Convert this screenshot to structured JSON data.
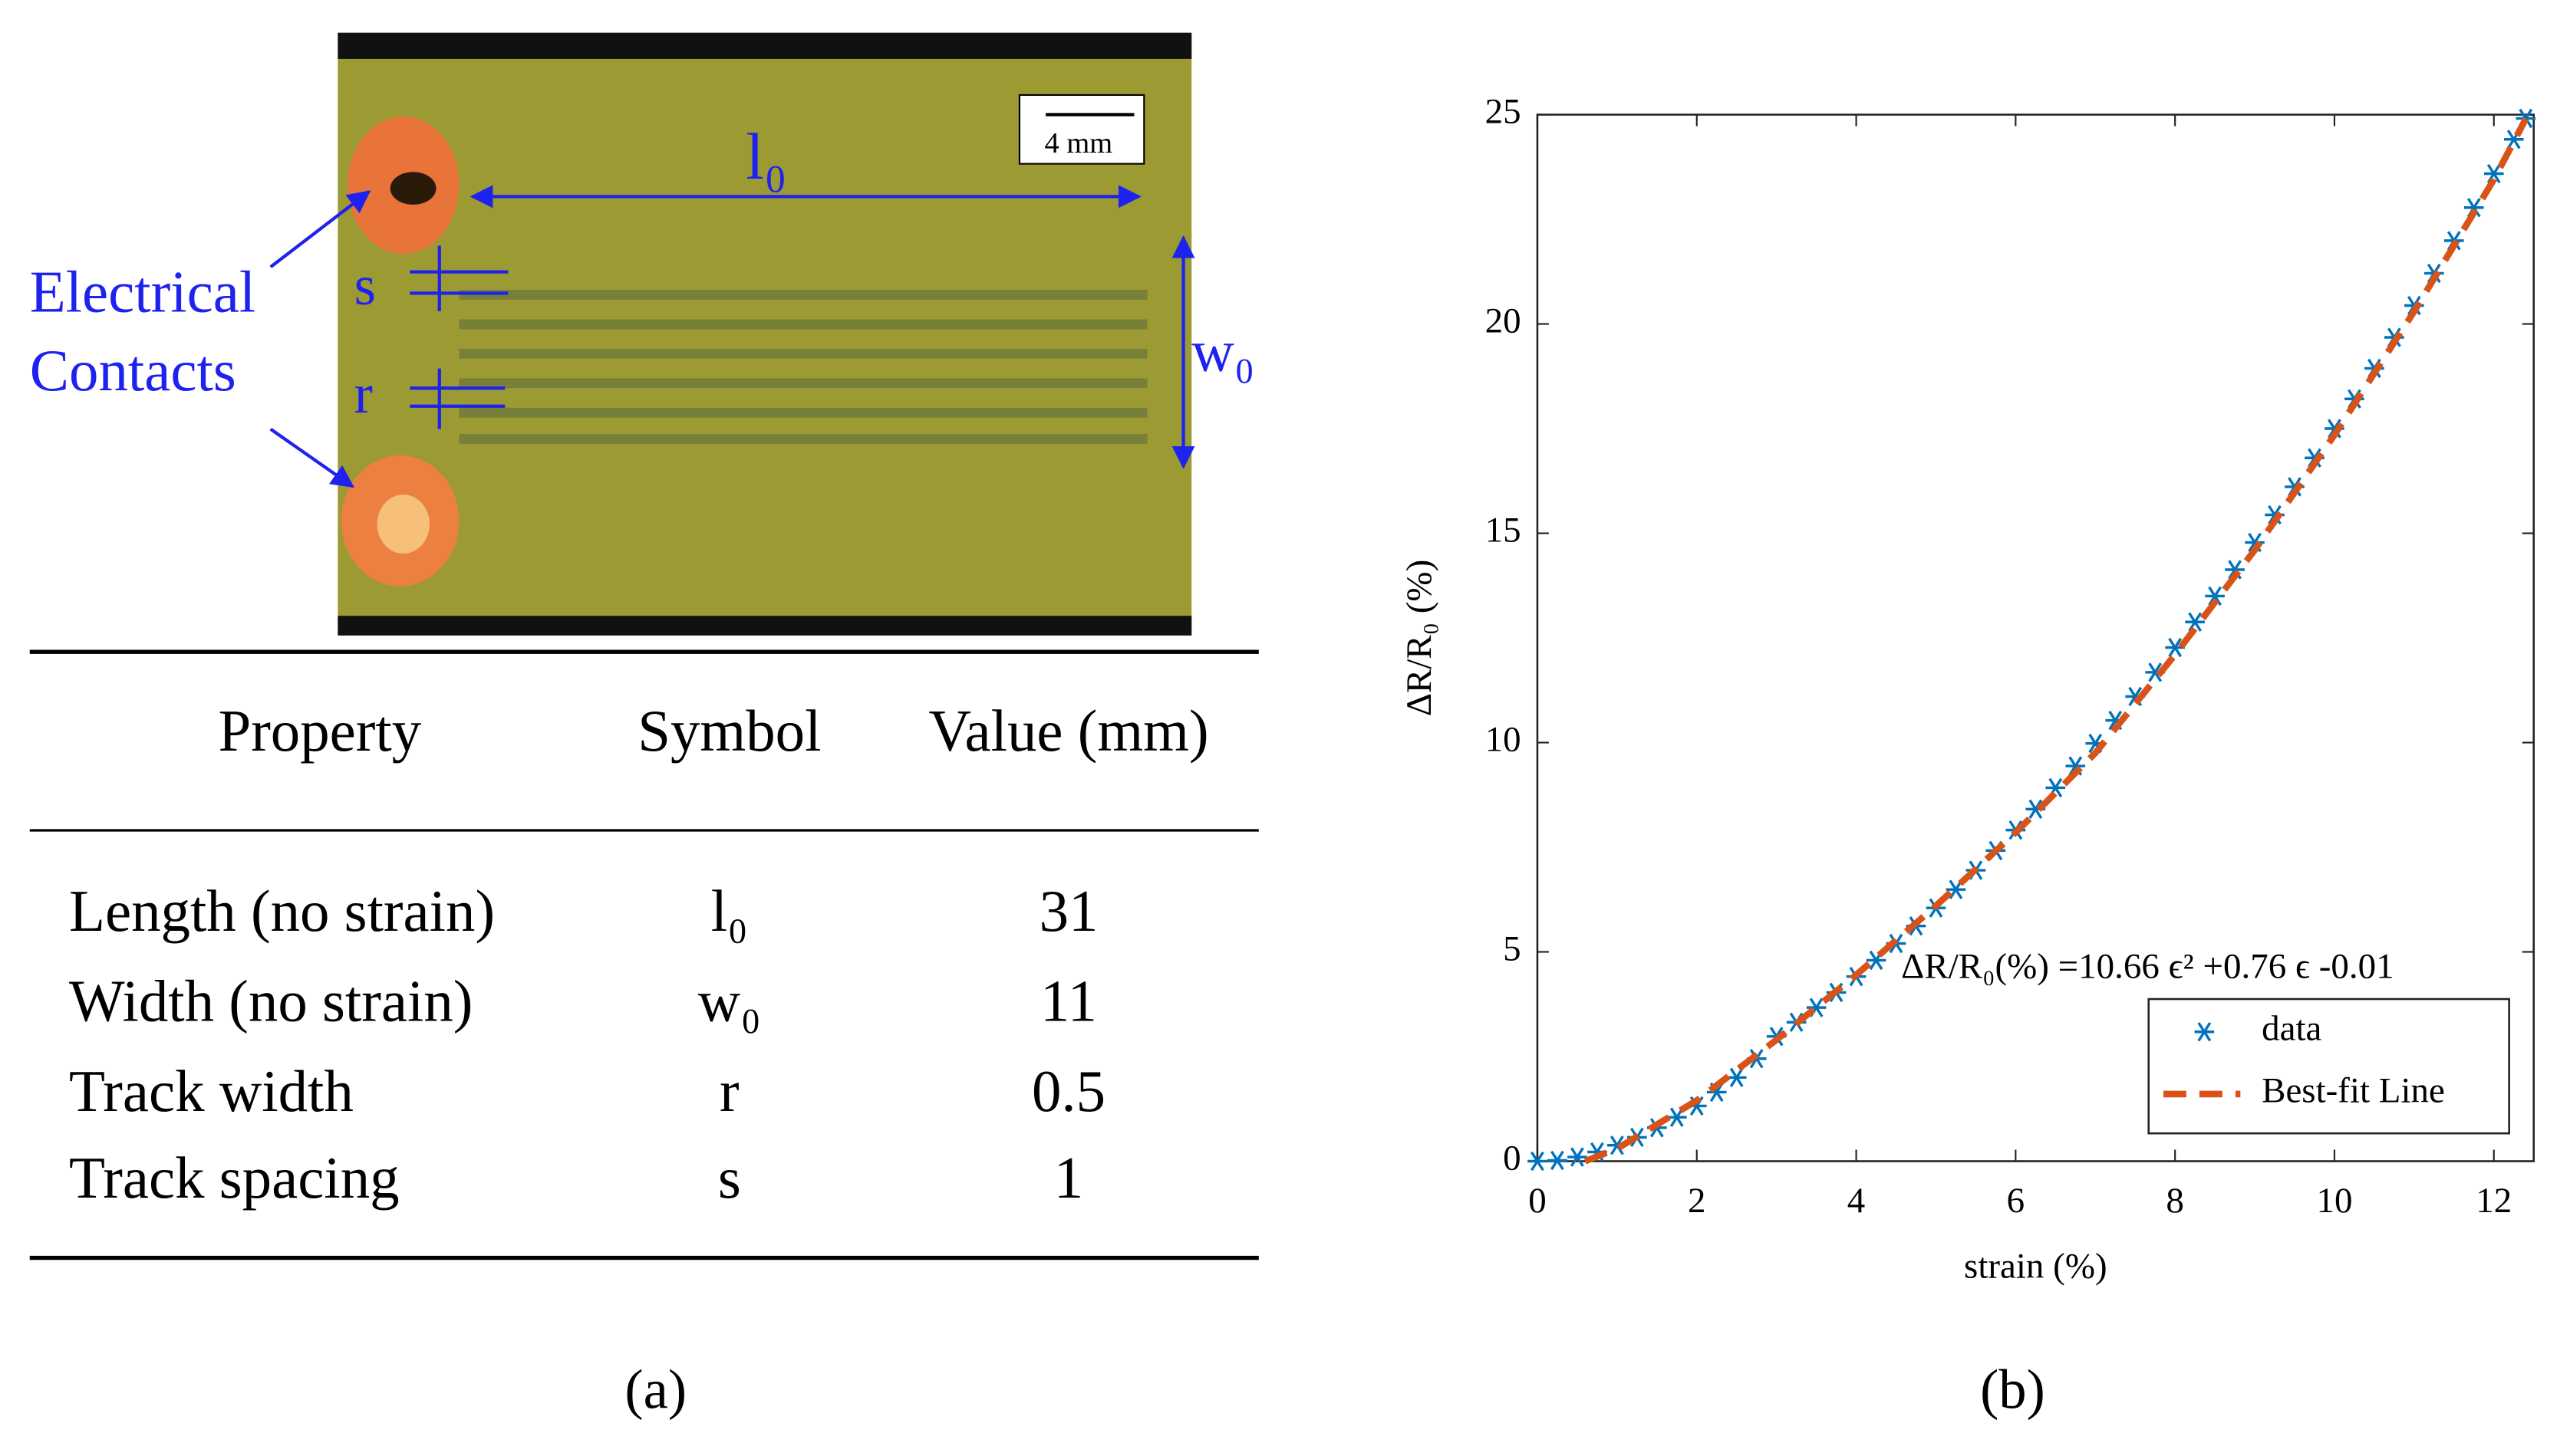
{
  "figure_a": {
    "photo_labels": {
      "contacts": [
        "Electrical",
        "Contacts"
      ],
      "s": "s",
      "r": "r",
      "l0": "l₀",
      "w0": "w₀",
      "scale": "4 mm"
    },
    "table": {
      "header": [
        "Property",
        "Symbol",
        "Value (mm)"
      ],
      "rows": [
        [
          "Length (no strain)",
          "l₀",
          31
        ],
        [
          "Width (no strain)",
          "w₀",
          11
        ],
        [
          "Track width",
          "r",
          0.5
        ],
        [
          "Track spacing",
          "s",
          1
        ]
      ]
    },
    "caption": "(a)"
  },
  "chart_data": {
    "type": "scatter",
    "caption": "(b)",
    "x_label": "strain (%)",
    "y_label": "ΔR/R₀ (%)",
    "annotation": "ΔR/R₀(%) =10.66 ϵ² +0.76 ϵ -0.01",
    "xlim": [
      0,
      12.5
    ],
    "xticks": [
      0,
      2,
      4,
      6,
      8,
      10,
      12
    ],
    "ylim": [
      0,
      25
    ],
    "yticks": [
      0,
      5,
      10,
      15,
      20,
      25
    ],
    "legend": "bottom-right",
    "series": [
      {
        "name": "data",
        "color": "#0072bd",
        "marker": "asterisk",
        "x": [
          0,
          0.25,
          0.5,
          0.75,
          1,
          1.25,
          1.5,
          1.75,
          2,
          2.25,
          2.5,
          2.75,
          3,
          3.25,
          3.5,
          3.75,
          4,
          4.25,
          4.5,
          4.75,
          5,
          5.25,
          5.5,
          5.75,
          6,
          6.25,
          6.5,
          6.75,
          7,
          7.25,
          7.5,
          7.75,
          8,
          8.25,
          8.5,
          8.75,
          9,
          9.25,
          9.5,
          9.75,
          10,
          10.25,
          10.5,
          10.75,
          11,
          11.25,
          11.5,
          11.75,
          12,
          12.25,
          12.4
        ],
        "values": [
          0,
          0.02,
          0.1,
          0.22,
          0.38,
          0.57,
          0.8,
          1.05,
          1.32,
          1.65,
          2.0,
          2.45,
          2.98,
          3.32,
          3.67,
          4.03,
          4.41,
          4.8,
          5.2,
          5.62,
          6.05,
          6.49,
          6.95,
          7.42,
          7.91,
          8.41,
          8.92,
          9.44,
          9.98,
          10.53,
          11.1,
          11.68,
          12.27,
          12.88,
          13.5,
          14.13,
          14.78,
          15.44,
          16.11,
          16.8,
          17.5,
          18.21,
          18.94,
          19.68,
          20.44,
          21.21,
          21.99,
          22.78,
          23.59,
          24.41,
          24.91
        ]
      },
      {
        "name": "Best-fit Line",
        "color": "#d95319",
        "line": "dashed",
        "x": [
          0.6,
          1,
          2,
          3,
          4,
          5,
          6,
          7,
          8,
          9,
          10,
          11,
          12,
          12.4
        ],
        "values": [
          0,
          0.3,
          1.45,
          2.9,
          4.45,
          6.1,
          7.85,
          9.75,
          12.1,
          14.6,
          17.35,
          20.3,
          23.45,
          24.9
        ]
      }
    ]
  }
}
